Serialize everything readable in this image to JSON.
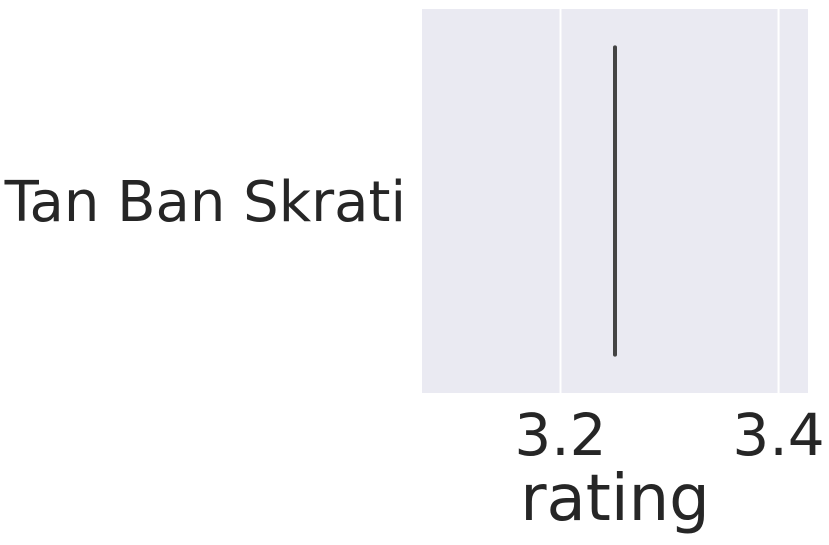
{
  "chart_data": {
    "type": "box",
    "orientation": "horizontal",
    "categories": [
      "Tan Ban Skrati"
    ],
    "series": [
      {
        "values": [
          3.25
        ],
        "whisker_low": 3.25,
        "whisker_high": 3.25,
        "q1": 3.25,
        "median": 3.25,
        "q3": 3.25
      }
    ],
    "xlabel": "rating",
    "ylabel": "",
    "xlim": [
      3.073,
      3.427
    ],
    "xticks": [
      {
        "value": 3.2,
        "label": "3.2"
      },
      {
        "value": 3.4,
        "label": "3.4"
      }
    ],
    "grid": true,
    "colors": {
      "plot_background": "#EAEAF2",
      "grid": "#FFFFFF",
      "box_line": "#444444",
      "text": "#262626"
    }
  }
}
